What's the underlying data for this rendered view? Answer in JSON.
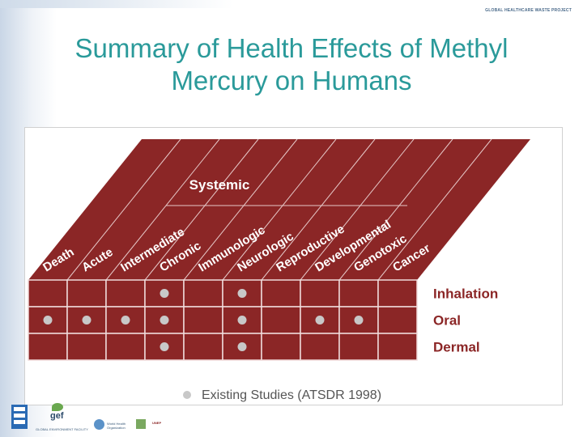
{
  "header": {
    "project_label": "GLOBAL HEALTHCARE WASTE PROJECT"
  },
  "slide": {
    "title_line1": "Summary of Health Effects of Methyl",
    "title_line2": "Mercury on Humans"
  },
  "figure": {
    "group_label": "Systemic",
    "columns": [
      "Death",
      "Acute",
      "Intermediate",
      "Chronic",
      "Immunologic",
      "Neurologic",
      "Reproductive",
      "Developmental",
      "Genotoxic",
      "Cancer"
    ],
    "rows": [
      "Inhalation",
      "Oral",
      "Dermal"
    ],
    "studies": [
      [
        0,
        0,
        0,
        1,
        0,
        1,
        0,
        0,
        0,
        0
      ],
      [
        1,
        1,
        1,
        1,
        0,
        1,
        0,
        1,
        1,
        0
      ],
      [
        0,
        0,
        0,
        1,
        0,
        1,
        0,
        0,
        0,
        0
      ]
    ],
    "legend_label": "Existing Studies (ATSDR 1998)",
    "colors": {
      "fill": "#8b2626",
      "text": "#ffffff",
      "dot": "#c8c8c8",
      "label": "#8b2626",
      "legend_text": "#555555"
    }
  },
  "footer": {
    "logos": [
      "undp-logo",
      "gef-logo",
      "who-logo",
      "unep-logo"
    ],
    "gef_text": "gef",
    "gef_caption": "GLOBAL ENVIRONMENT FACILITY",
    "who_text": "World Health Organization",
    "unep_text": "UNEP"
  }
}
